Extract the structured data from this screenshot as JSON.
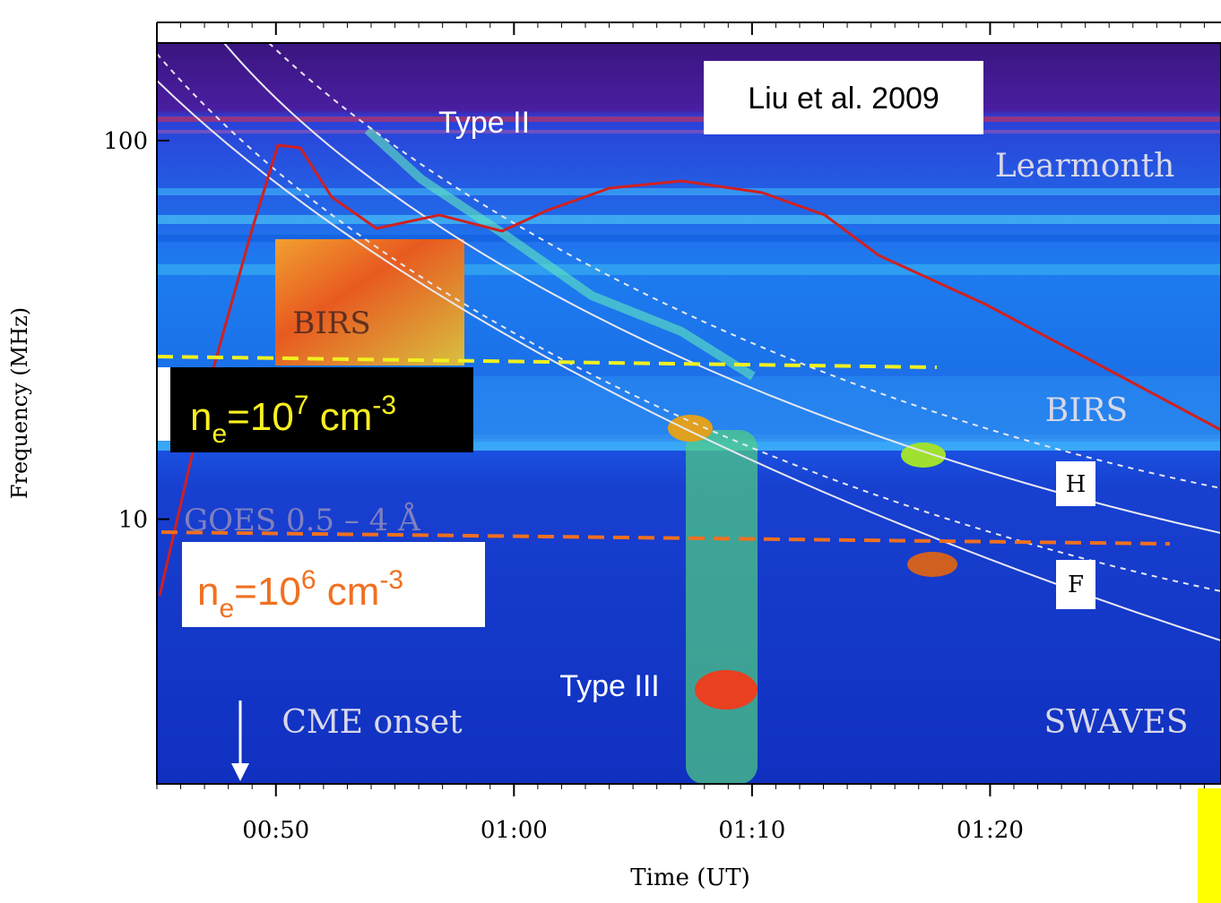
{
  "chart_data": {
    "type": "spectrogram",
    "xlabel": "Time (UT)",
    "ylabel": "Frequency (MHz)",
    "xlim": [
      45,
      89.7
    ],
    "xticks": [
      {
        "value": 50,
        "label": "00:50"
      },
      {
        "value": 60,
        "label": "01:00"
      },
      {
        "value": 70,
        "label": "01:10"
      },
      {
        "value": 80,
        "label": "01:20"
      }
    ],
    "ylim": [
      2,
      181
    ],
    "yticks": [
      10,
      100
    ],
    "log_y": true,
    "annotations": {
      "reference": "Liu et al. 2009",
      "type2": "Type II",
      "type3": "Type III",
      "learmonth": "Learmonth",
      "birs_patch": "BIRS",
      "birs": "BIRS",
      "h": "H",
      "f": "F",
      "swaves": "SWAVES",
      "cme": "CME onset",
      "goes": "GOES 0.5 – 4 Å"
    },
    "density_labels": [
      {
        "n": "n",
        "sub": "e",
        "eq": "=10",
        "exp": "7",
        "unit": " cm",
        "unit_exp": "-3"
      },
      {
        "n": "n",
        "sub": "e",
        "eq": "=10",
        "exp": "6",
        "unit": " cm",
        "unit_exp": "-3"
      }
    ]
  }
}
